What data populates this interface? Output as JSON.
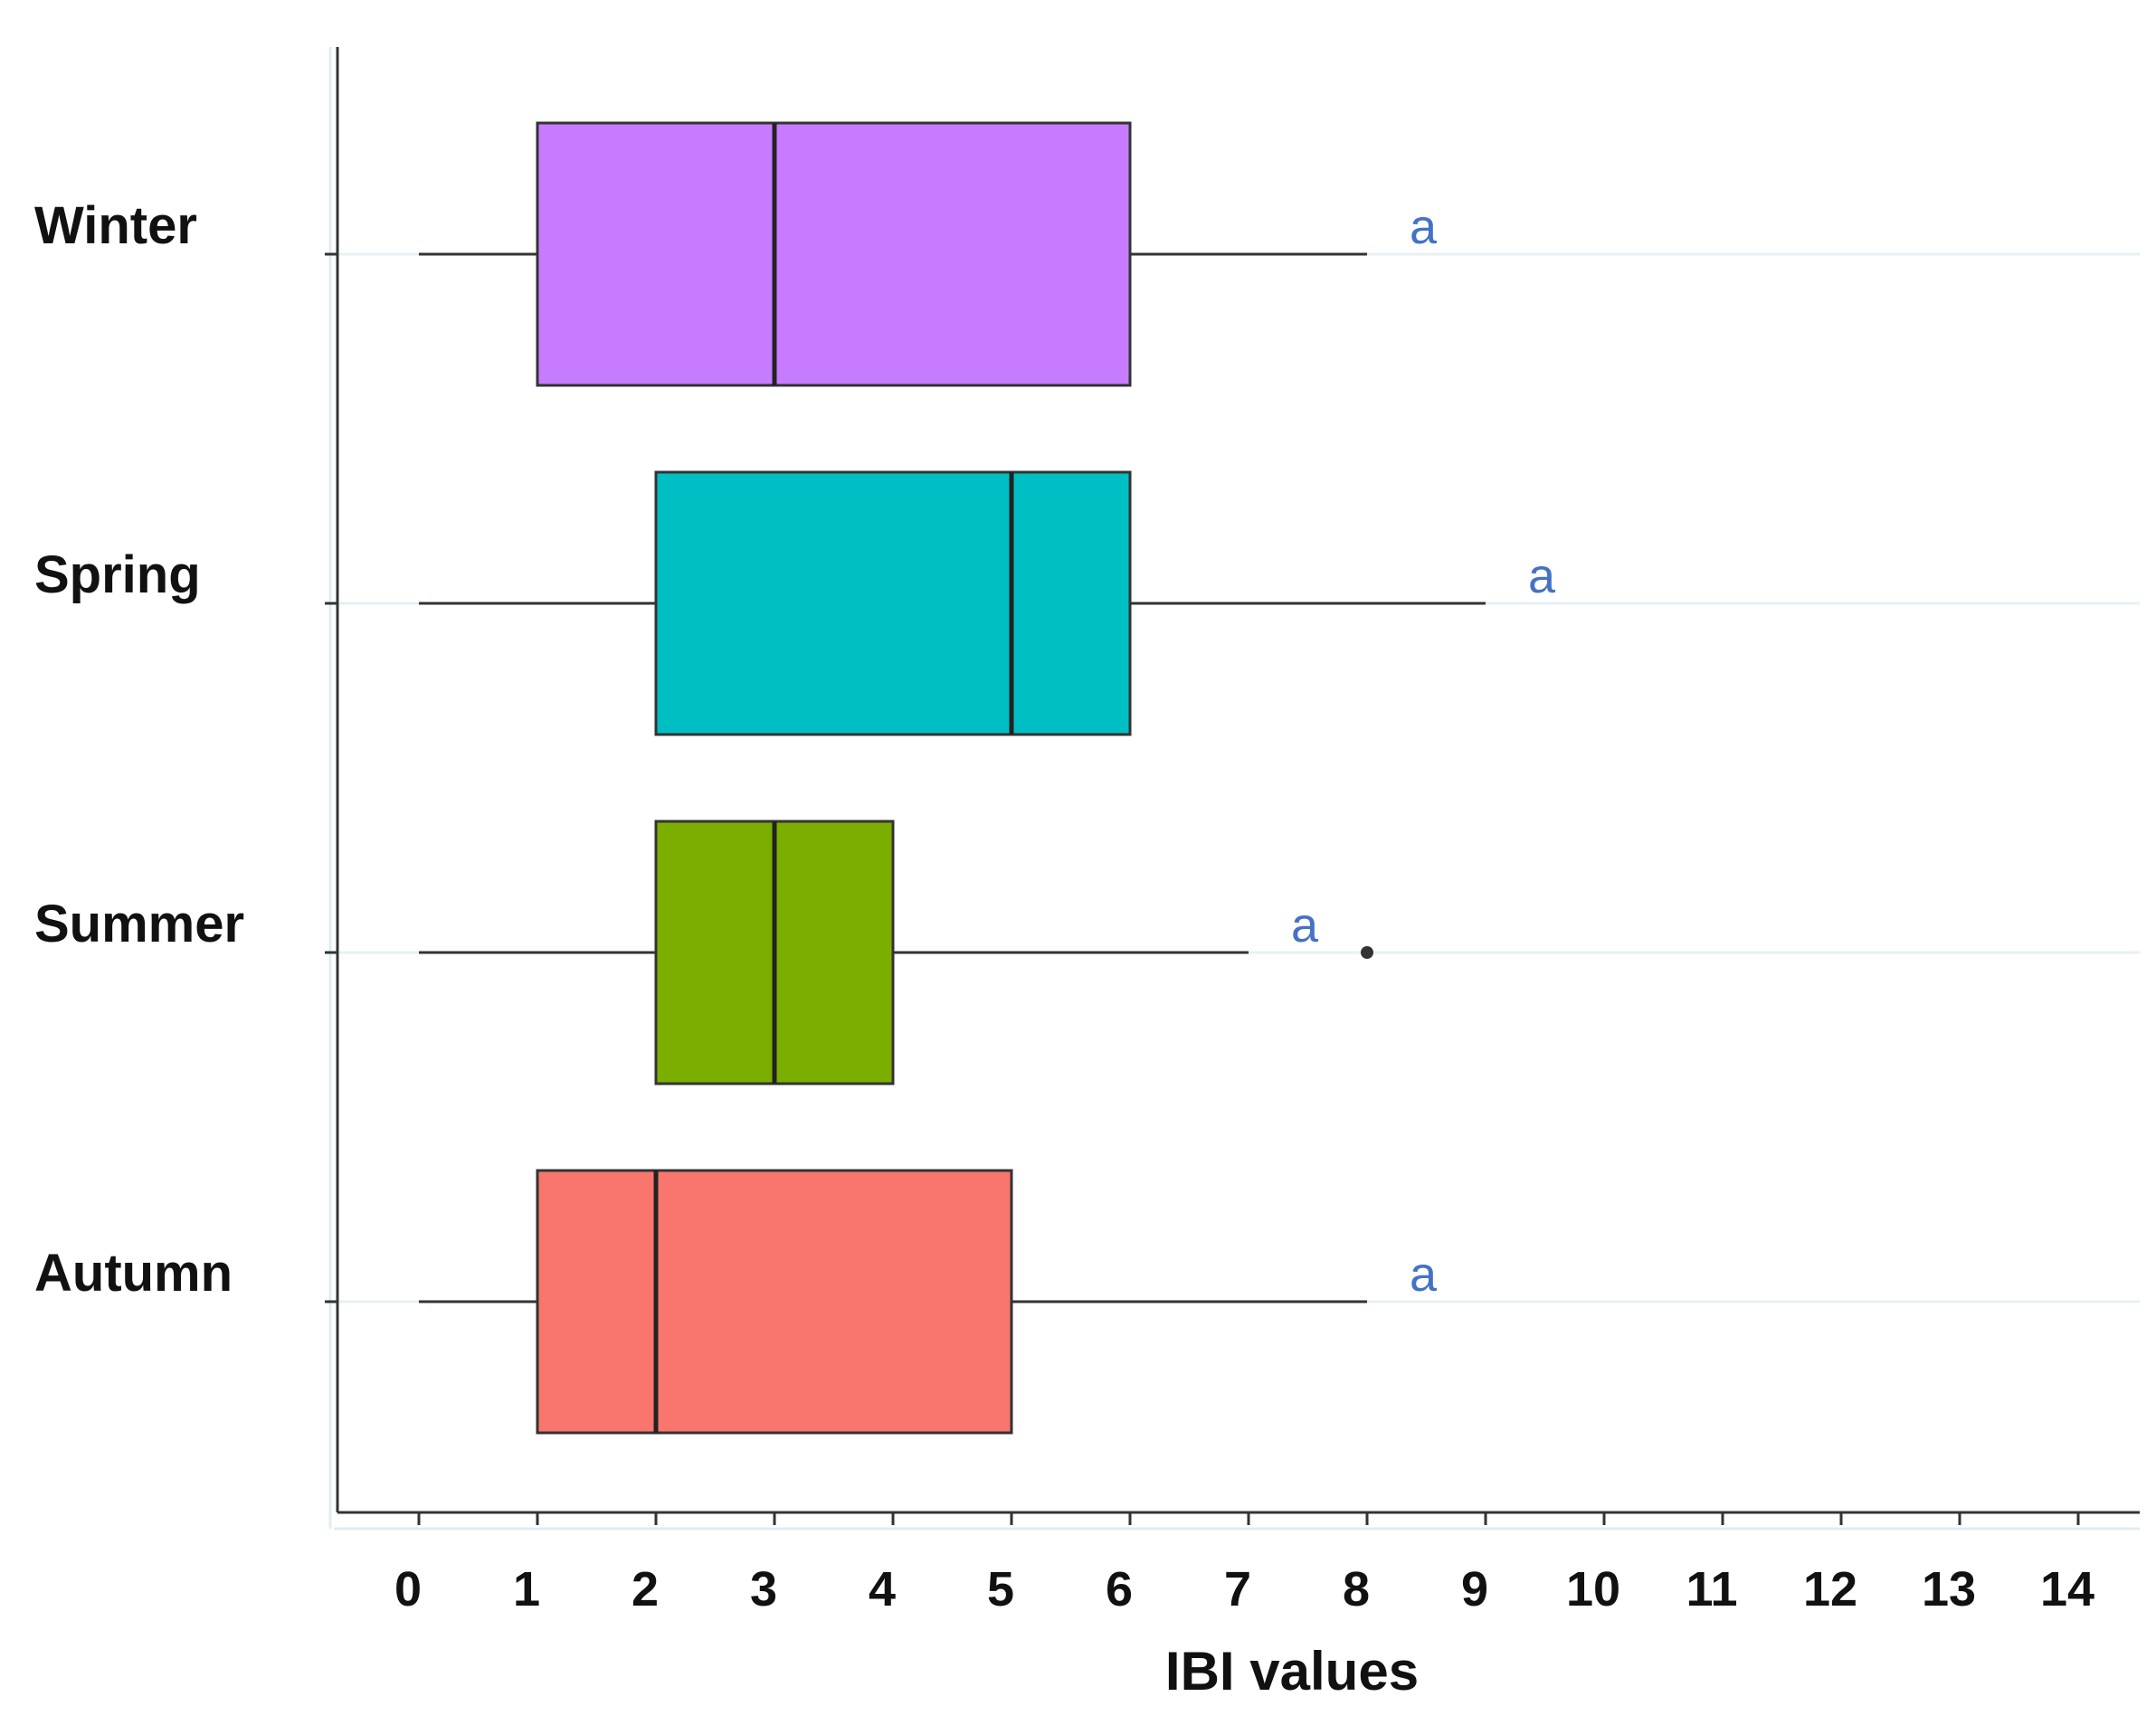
{
  "chart_data": {
    "type": "boxplot",
    "orientation": "horizontal",
    "xlabel": "IBI values",
    "xlim": [
      0,
      14
    ],
    "xticks": [
      "0",
      "1",
      "2",
      "3",
      "4",
      "5",
      "6",
      "7",
      "8",
      "9",
      "10",
      "11",
      "12",
      "13",
      "14"
    ],
    "grid": "horizontal lines at category centers",
    "series": [
      {
        "name": "Winter",
        "whisker_low": 0,
        "q1": 1,
        "median": 3,
        "q3": 6,
        "whisker_high": 8,
        "outliers": [],
        "color": "#C77CFF",
        "annotation": "a"
      },
      {
        "name": "Spring",
        "whisker_low": 0,
        "q1": 2,
        "median": 5,
        "q3": 6,
        "whisker_high": 9,
        "outliers": [],
        "color": "#00BFC4",
        "annotation": "a"
      },
      {
        "name": "Summer",
        "whisker_low": 0,
        "q1": 2,
        "median": 3,
        "q3": 4,
        "whisker_high": 7,
        "outliers": [
          8
        ],
        "color": "#7CAE00",
        "annotation": "a"
      },
      {
        "name": "Autumn",
        "whisker_low": 0,
        "q1": 1,
        "median": 2,
        "q3": 5,
        "whisker_high": 8,
        "outliers": [],
        "color": "#F8766D",
        "annotation": "a"
      }
    ],
    "annotation_color": "#4472C4"
  }
}
